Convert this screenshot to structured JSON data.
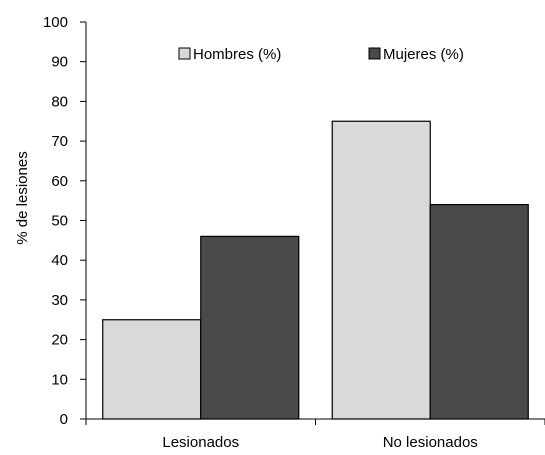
{
  "chart_data": {
    "type": "bar",
    "categories": [
      "Lesionados",
      "No lesionados"
    ],
    "series": [
      {
        "name": "Hombres (%)",
        "values": [
          25,
          75
        ],
        "color": "#d9d9d9"
      },
      {
        "name": "Mujeres (%)",
        "values": [
          46,
          54
        ],
        "color": "#4a4a4a"
      }
    ],
    "title": "",
    "xlabel": "",
    "ylabel": "% de lesiones",
    "ylim": [
      0,
      100
    ],
    "yticks": [
      0,
      10,
      20,
      30,
      40,
      50,
      60,
      70,
      80,
      90,
      100
    ],
    "grid": false,
    "legend_position": "top-center",
    "bar_outline_color": "#000000"
  }
}
